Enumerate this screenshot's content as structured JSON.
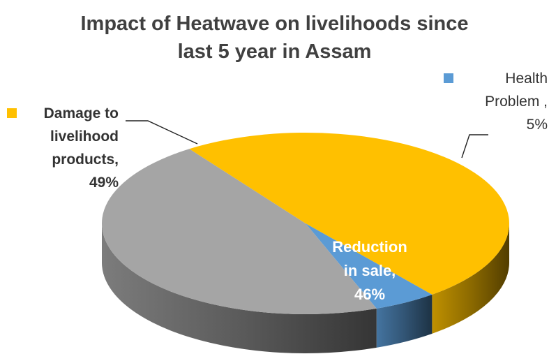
{
  "chart_data": {
    "type": "pie",
    "title": "Impact of Heatwave on livelihoods since last 5 year in Assam",
    "title_lines": [
      "Impact of Heatwave on livelihoods since",
      "last 5 year in Assam"
    ],
    "style": "3d",
    "slices": [
      {
        "name": "Damage to livelihood products",
        "value": 49,
        "color": "#FFC000",
        "label_lines": [
          "Damage to",
          "livelihood",
          "products,",
          "49%"
        ]
      },
      {
        "name": "Health Problem",
        "value": 5,
        "color": "#5B9BD5",
        "label_lines": [
          "Health",
          "Problem ,",
          "5%"
        ]
      },
      {
        "name": "Reduction in sale",
        "value": 46,
        "color": "#A5A5A5",
        "label_lines": [
          "Reduction",
          "in sale,",
          "46%"
        ]
      }
    ],
    "legend": "none"
  }
}
